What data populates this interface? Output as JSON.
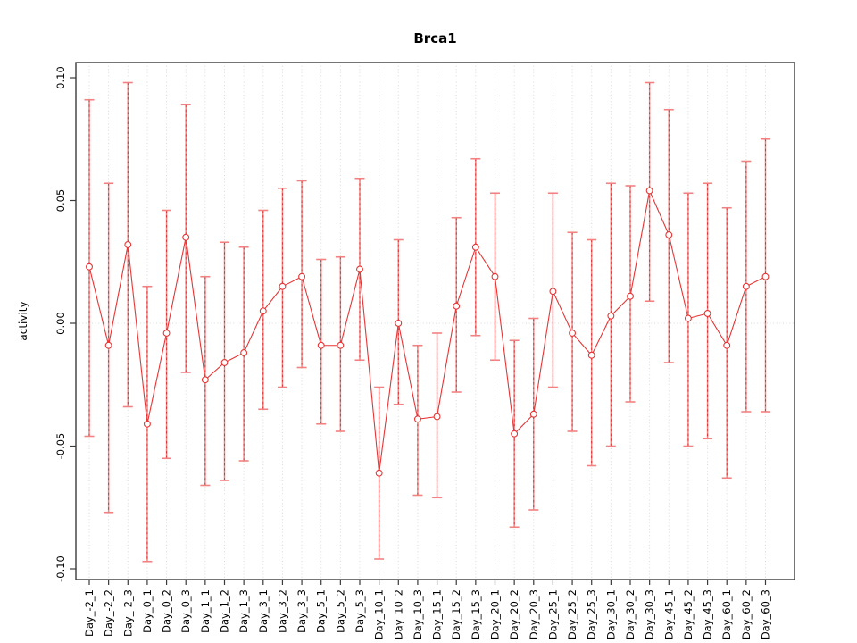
{
  "page": {
    "background": "#ffffff"
  },
  "chart_data": {
    "type": "line",
    "subtype": "points-with-error-bars",
    "title": "Brca1",
    "xlabel": "",
    "ylabel": "activity",
    "legend": "none",
    "marker": "open-circle",
    "ylim": [
      -0.1,
      0.1
    ],
    "yticks": [
      0.1,
      0.05,
      0.0,
      -0.05,
      -0.1
    ],
    "grid": {
      "vertical_dotted_per_category": true,
      "horizontal_zero_dotted": true
    },
    "categories": [
      "Day_-2_1",
      "Day_-2_2",
      "Day_-2_3",
      "Day_0_1",
      "Day_0_2",
      "Day_0_3",
      "Day_1_1",
      "Day_1_2",
      "Day_1_3",
      "Day_3_1",
      "Day_3_2",
      "Day_3_3",
      "Day_5_1",
      "Day_5_2",
      "Day_5_3",
      "Day_10_1",
      "Day_10_2",
      "Day_10_3",
      "Day_15_1",
      "Day_15_2",
      "Day_15_3",
      "Day_20_1",
      "Day_20_2",
      "Day_20_3",
      "Day_25_1",
      "Day_25_2",
      "Day_25_3",
      "Day_30_1",
      "Day_30_2",
      "Day_30_3",
      "Day_45_1",
      "Day_45_2",
      "Day_45_3",
      "Day_60_1",
      "Day_60_2",
      "Day_60_3"
    ],
    "series": [
      {
        "name": "activity",
        "values": [
          0.023,
          -0.009,
          0.032,
          -0.041,
          -0.004,
          0.035,
          -0.023,
          -0.016,
          -0.012,
          0.005,
          0.015,
          0.019,
          -0.009,
          -0.009,
          0.022,
          -0.061,
          0.0,
          -0.039,
          -0.038,
          0.007,
          0.031,
          0.019,
          -0.045,
          -0.037,
          0.013,
          -0.004,
          -0.013,
          0.003,
          0.011,
          0.054,
          0.036,
          0.002,
          0.004,
          -0.009,
          0.015,
          0.019
        ],
        "err_high": [
          0.091,
          0.057,
          0.098,
          0.015,
          0.046,
          0.089,
          0.019,
          0.033,
          0.031,
          0.046,
          0.055,
          0.058,
          0.026,
          0.027,
          0.059,
          -0.026,
          0.034,
          -0.009,
          -0.004,
          0.043,
          0.067,
          0.053,
          -0.007,
          0.002,
          0.053,
          0.037,
          0.034,
          0.057,
          0.056,
          0.098,
          0.087,
          0.053,
          0.057,
          0.047,
          0.066,
          0.075
        ],
        "err_low": [
          -0.046,
          -0.077,
          -0.034,
          -0.097,
          -0.055,
          -0.02,
          -0.066,
          -0.064,
          -0.056,
          -0.035,
          -0.026,
          -0.018,
          -0.041,
          -0.044,
          -0.015,
          -0.096,
          -0.033,
          -0.07,
          -0.071,
          -0.028,
          -0.005,
          -0.015,
          -0.083,
          -0.076,
          -0.026,
          -0.044,
          -0.058,
          -0.05,
          -0.032,
          0.009,
          -0.016,
          -0.05,
          -0.047,
          -0.063,
          -0.036,
          -0.036
        ]
      }
    ],
    "colors": {
      "series_line": "#e53535",
      "marker_stroke": "#e53535",
      "marker_fill": "#ffffff",
      "errorbar": "#f28282",
      "errorbar_dash": "#df3030",
      "grid": "#dadada",
      "axis": "#3a3a3a",
      "text": "#000000",
      "background": "#ffffff"
    }
  }
}
